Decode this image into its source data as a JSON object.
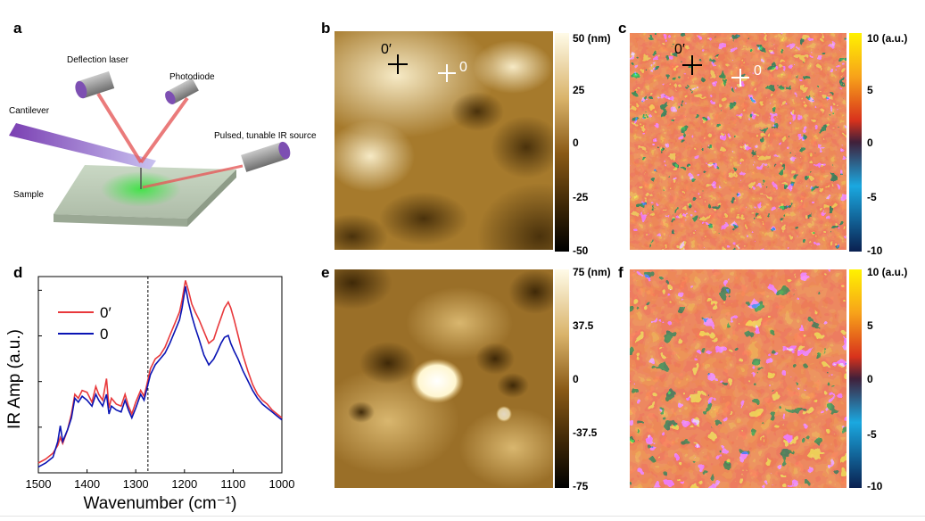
{
  "panels": {
    "a": {
      "letter": "a",
      "labels": {
        "deflection_laser": "Deflection laser",
        "photodiode": "Photodiode",
        "cantilever": "Cantilever",
        "ir_source": "Pulsed, tunable IR source",
        "sample": "Sample"
      }
    },
    "b": {
      "letter": "b",
      "markers": [
        "0′",
        "0"
      ],
      "colorbar": {
        "ticks": [
          "50 (nm)",
          "25",
          "0",
          "-25",
          "-50"
        ]
      }
    },
    "c": {
      "letter": "c",
      "markers": [
        "0′",
        "0"
      ],
      "colorbar": {
        "ticks": [
          "10 (a.u.)",
          "5",
          "0",
          "-5",
          "-10"
        ]
      }
    },
    "d": {
      "letter": "d"
    },
    "e": {
      "letter": "e",
      "colorbar": {
        "ticks": [
          "75 (nm)",
          "37.5",
          "0",
          "-37.5",
          "-75"
        ]
      }
    },
    "f": {
      "letter": "f",
      "colorbar": {
        "ticks": [
          "10 (a.u.)",
          "5",
          "0",
          "-5",
          "-10"
        ]
      }
    }
  },
  "colors": {
    "spectrum_0prime": "#e8383b",
    "spectrum_0": "#0a14b4",
    "afm_high": "#fffbe8",
    "afm_mid": "#9a6818",
    "afm_low": "#000000",
    "ir_high": "#fff200",
    "ir_mid": "#d8321c",
    "ir_low": "#0a2050"
  },
  "chart_data": {
    "type": "line",
    "xlabel": "Wavenumber (cm⁻¹)",
    "ylabel": "IR Amp (a.u.)",
    "xlim": [
      1500,
      1000
    ],
    "x_reversed": true,
    "x_ticks": [
      "1500",
      "1400",
      "1300",
      "1200",
      "1100",
      "1000"
    ],
    "dashed_vline_x": 1275,
    "legend_position": "top-left",
    "series": [
      {
        "name": "0′",
        "color": "#e8383b",
        "points": [
          [
            1500,
            0.05
          ],
          [
            1485,
            0.07
          ],
          [
            1470,
            0.1
          ],
          [
            1460,
            0.14
          ],
          [
            1455,
            0.18
          ],
          [
            1450,
            0.15
          ],
          [
            1440,
            0.22
          ],
          [
            1432,
            0.3
          ],
          [
            1425,
            0.4
          ],
          [
            1418,
            0.38
          ],
          [
            1410,
            0.42
          ],
          [
            1400,
            0.41
          ],
          [
            1390,
            0.36
          ],
          [
            1382,
            0.44
          ],
          [
            1376,
            0.4
          ],
          [
            1368,
            0.37
          ],
          [
            1360,
            0.48
          ],
          [
            1355,
            0.33
          ],
          [
            1350,
            0.38
          ],
          [
            1340,
            0.35
          ],
          [
            1330,
            0.34
          ],
          [
            1322,
            0.4
          ],
          [
            1315,
            0.34
          ],
          [
            1308,
            0.3
          ],
          [
            1300,
            0.36
          ],
          [
            1290,
            0.42
          ],
          [
            1283,
            0.39
          ],
          [
            1278,
            0.44
          ],
          [
            1270,
            0.53
          ],
          [
            1260,
            0.58
          ],
          [
            1250,
            0.6
          ],
          [
            1240,
            0.64
          ],
          [
            1230,
            0.7
          ],
          [
            1220,
            0.76
          ],
          [
            1210,
            0.82
          ],
          [
            1205,
            0.88
          ],
          [
            1198,
            0.98
          ],
          [
            1192,
            0.93
          ],
          [
            1185,
            0.86
          ],
          [
            1178,
            0.82
          ],
          [
            1170,
            0.78
          ],
          [
            1160,
            0.72
          ],
          [
            1150,
            0.66
          ],
          [
            1140,
            0.68
          ],
          [
            1132,
            0.74
          ],
          [
            1125,
            0.79
          ],
          [
            1118,
            0.84
          ],
          [
            1110,
            0.87
          ],
          [
            1105,
            0.84
          ],
          [
            1098,
            0.78
          ],
          [
            1090,
            0.7
          ],
          [
            1080,
            0.6
          ],
          [
            1070,
            0.52
          ],
          [
            1060,
            0.45
          ],
          [
            1050,
            0.4
          ],
          [
            1040,
            0.37
          ],
          [
            1030,
            0.35
          ],
          [
            1020,
            0.32
          ],
          [
            1010,
            0.3
          ],
          [
            1000,
            0.28
          ]
        ]
      },
      {
        "name": "0",
        "color": "#0a14b4",
        "points": [
          [
            1500,
            0.03
          ],
          [
            1485,
            0.05
          ],
          [
            1470,
            0.08
          ],
          [
            1460,
            0.16
          ],
          [
            1455,
            0.24
          ],
          [
            1450,
            0.16
          ],
          [
            1440,
            0.22
          ],
          [
            1432,
            0.28
          ],
          [
            1425,
            0.38
          ],
          [
            1418,
            0.36
          ],
          [
            1410,
            0.39
          ],
          [
            1400,
            0.37
          ],
          [
            1390,
            0.34
          ],
          [
            1382,
            0.4
          ],
          [
            1376,
            0.37
          ],
          [
            1368,
            0.34
          ],
          [
            1360,
            0.4
          ],
          [
            1355,
            0.3
          ],
          [
            1350,
            0.34
          ],
          [
            1340,
            0.32
          ],
          [
            1330,
            0.31
          ],
          [
            1322,
            0.37
          ],
          [
            1315,
            0.32
          ],
          [
            1308,
            0.28
          ],
          [
            1300,
            0.33
          ],
          [
            1290,
            0.4
          ],
          [
            1283,
            0.37
          ],
          [
            1278,
            0.42
          ],
          [
            1270,
            0.5
          ],
          [
            1260,
            0.55
          ],
          [
            1250,
            0.58
          ],
          [
            1240,
            0.61
          ],
          [
            1230,
            0.66
          ],
          [
            1220,
            0.72
          ],
          [
            1210,
            0.78
          ],
          [
            1205,
            0.84
          ],
          [
            1198,
            0.95
          ],
          [
            1192,
            0.87
          ],
          [
            1185,
            0.8
          ],
          [
            1178,
            0.74
          ],
          [
            1170,
            0.68
          ],
          [
            1160,
            0.6
          ],
          [
            1150,
            0.55
          ],
          [
            1140,
            0.58
          ],
          [
            1132,
            0.62
          ],
          [
            1125,
            0.66
          ],
          [
            1118,
            0.69
          ],
          [
            1110,
            0.7
          ],
          [
            1105,
            0.66
          ],
          [
            1098,
            0.62
          ],
          [
            1090,
            0.58
          ],
          [
            1080,
            0.52
          ],
          [
            1070,
            0.47
          ],
          [
            1060,
            0.42
          ],
          [
            1050,
            0.38
          ],
          [
            1040,
            0.35
          ],
          [
            1030,
            0.33
          ],
          [
            1020,
            0.31
          ],
          [
            1010,
            0.29
          ],
          [
            1000,
            0.27
          ]
        ]
      }
    ]
  }
}
